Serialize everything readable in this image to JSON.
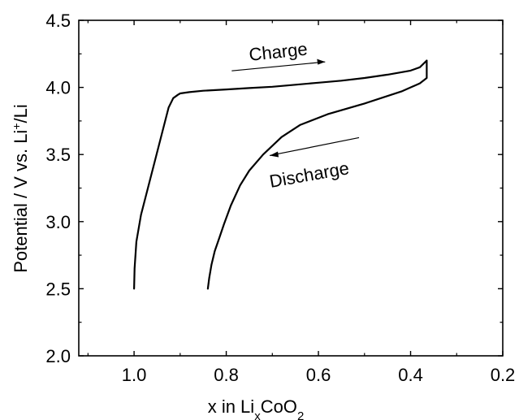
{
  "chart_data": {
    "type": "line",
    "title": "",
    "xlabel": {
      "prefix": "x in Li",
      "sub1": "x",
      "mid": "CoO",
      "sub2": "2"
    },
    "ylabel": {
      "prefix": "Potential / V vs. Li",
      "sup": "+",
      "suffix": "/Li"
    },
    "xlim": [
      1.12,
      0.2
    ],
    "ylim": [
      2.0,
      4.5
    ],
    "x_reversed": true,
    "x_ticks": [
      1.0,
      0.8,
      0.6,
      0.4,
      0.2
    ],
    "x_tick_labels": [
      "1.0",
      "0.8",
      "0.6",
      "0.4",
      "0.2"
    ],
    "y_ticks": [
      2.0,
      2.5,
      3.0,
      3.5,
      4.0,
      4.5
    ],
    "y_tick_labels": [
      "2.0",
      "2.5",
      "3.0",
      "3.5",
      "4.0",
      "4.5"
    ],
    "grid": false,
    "legend": "none",
    "line_color": "#000000",
    "series": [
      {
        "name": "Charge",
        "x": [
          1.0,
          0.999,
          0.995,
          0.985,
          0.97,
          0.955,
          0.94,
          0.925,
          0.915,
          0.905,
          0.9,
          0.88,
          0.85,
          0.8,
          0.75,
          0.7,
          0.65,
          0.6,
          0.55,
          0.5,
          0.45,
          0.4,
          0.38,
          0.365
        ],
        "y": [
          2.5,
          2.65,
          2.85,
          3.05,
          3.25,
          3.45,
          3.65,
          3.85,
          3.92,
          3.945,
          3.955,
          3.965,
          3.975,
          3.985,
          3.995,
          4.005,
          4.02,
          4.035,
          4.05,
          4.07,
          4.095,
          4.125,
          4.15,
          4.2
        ]
      },
      {
        "name": "Discharge",
        "x": [
          0.365,
          0.365,
          0.38,
          0.42,
          0.5,
          0.58,
          0.64,
          0.68,
          0.72,
          0.75,
          0.77,
          0.79,
          0.805,
          0.815,
          0.825,
          0.832,
          0.837,
          0.84
        ],
        "y": [
          4.2,
          4.07,
          4.03,
          3.97,
          3.88,
          3.8,
          3.72,
          3.63,
          3.5,
          3.38,
          3.27,
          3.12,
          2.98,
          2.88,
          2.78,
          2.68,
          2.58,
          2.5
        ]
      }
    ],
    "annotations": [
      {
        "text": "Charge",
        "arrow": "right",
        "x": 0.7,
        "y": 4.16
      },
      {
        "text": "Discharge",
        "arrow": "left",
        "x": 0.6,
        "y": 3.45
      }
    ]
  }
}
